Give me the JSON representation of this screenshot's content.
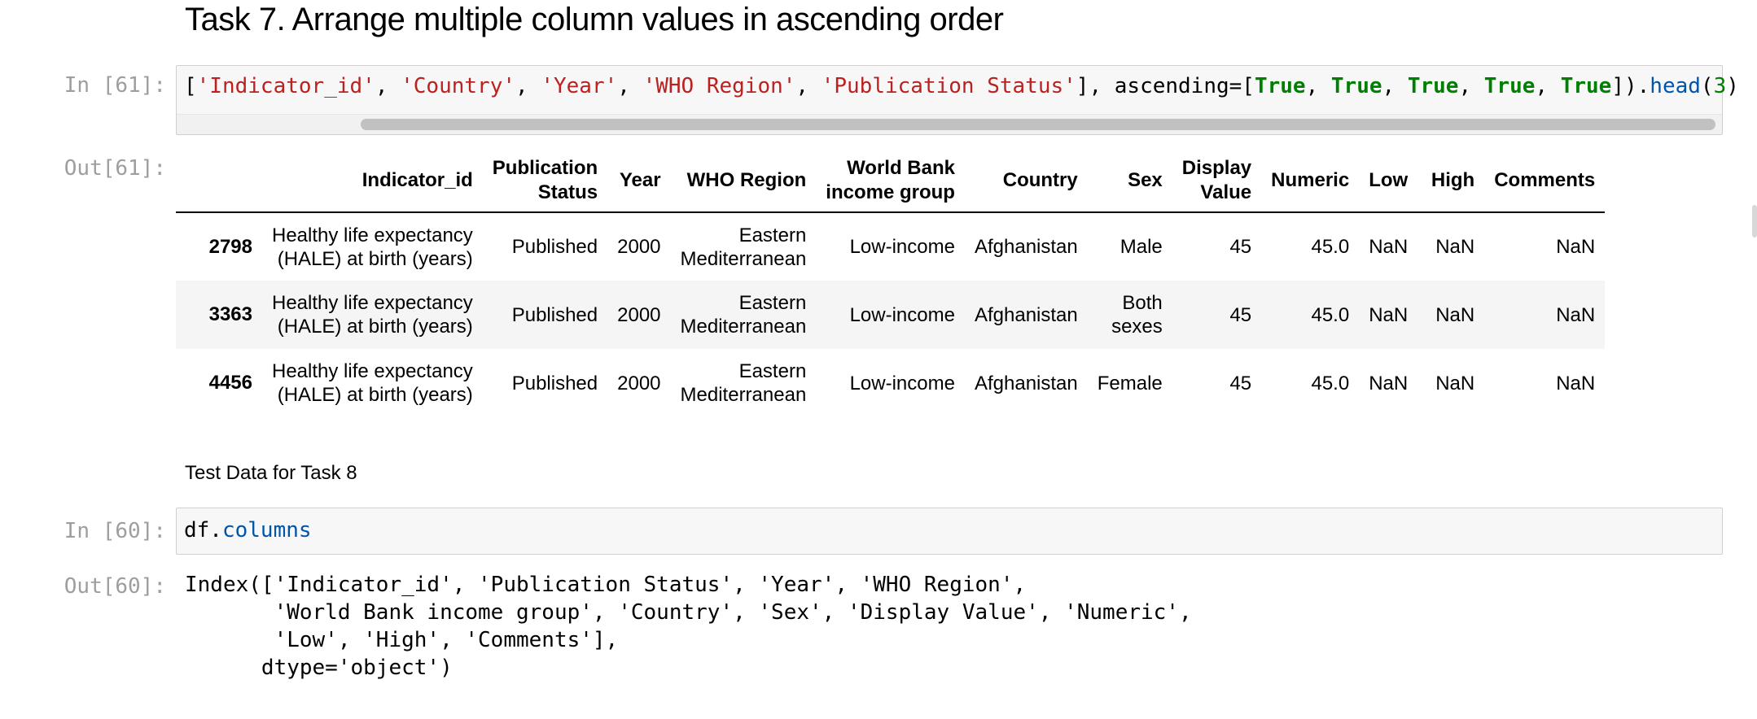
{
  "heading": "Task 7. Arrange multiple column values in ascending order",
  "cell61": {
    "in_prompt": "In [61]:",
    "out_prompt": "Out[61]:",
    "code": {
      "p1": "[",
      "s1": "'Indicator_id'",
      "c1": ", ",
      "s2": "'Country'",
      "c2": ", ",
      "s3": "'Year'",
      "c3": ", ",
      "s4": "'WHO Region'",
      "c4": ", ",
      "s5": "'Publication Status'",
      "p2": "], ascending=[",
      "k1": "True",
      "c5": ", ",
      "k2": "True",
      "c6": ", ",
      "k3": "True",
      "c7": ", ",
      "k4": "True",
      "c8": ", ",
      "k5": "True",
      "p3": "]).",
      "f1": "head",
      "p4": "(",
      "n1": "3",
      "p5": ")"
    },
    "table": {
      "columns": [
        [
          "Indicator_id"
        ],
        [
          "Publication",
          "Status"
        ],
        [
          "Year"
        ],
        [
          "WHO Region"
        ],
        [
          "World Bank",
          "income group"
        ],
        [
          "Country"
        ],
        [
          "Sex"
        ],
        [
          "Display",
          "Value"
        ],
        [
          "Numeric"
        ],
        [
          "Low"
        ],
        [
          "High"
        ],
        [
          "Comments"
        ]
      ],
      "rows": [
        {
          "index": "2798",
          "cells": [
            [
              "Healthy life expectancy",
              "(HALE) at birth (years)"
            ],
            [
              "Published"
            ],
            [
              "2000"
            ],
            [
              "Eastern",
              "Mediterranean"
            ],
            [
              "Low-income"
            ],
            [
              "Afghanistan"
            ],
            [
              "Male"
            ],
            [
              "45"
            ],
            [
              "45.0"
            ],
            [
              "NaN"
            ],
            [
              "NaN"
            ],
            [
              "NaN"
            ]
          ]
        },
        {
          "index": "3363",
          "cells": [
            [
              "Healthy life expectancy",
              "(HALE) at birth (years)"
            ],
            [
              "Published"
            ],
            [
              "2000"
            ],
            [
              "Eastern",
              "Mediterranean"
            ],
            [
              "Low-income"
            ],
            [
              "Afghanistan"
            ],
            [
              "Both",
              "sexes"
            ],
            [
              "45"
            ],
            [
              "45.0"
            ],
            [
              "NaN"
            ],
            [
              "NaN"
            ],
            [
              "NaN"
            ]
          ]
        },
        {
          "index": "4456",
          "cells": [
            [
              "Healthy life expectancy",
              "(HALE) at birth (years)"
            ],
            [
              "Published"
            ],
            [
              "2000"
            ],
            [
              "Eastern",
              "Mediterranean"
            ],
            [
              "Low-income"
            ],
            [
              "Afghanistan"
            ],
            [
              "Female"
            ],
            [
              "45"
            ],
            [
              "45.0"
            ],
            [
              "NaN"
            ],
            [
              "NaN"
            ],
            [
              "NaN"
            ]
          ]
        }
      ]
    }
  },
  "markdown_text": "Test Data for Task 8",
  "cell60": {
    "in_prompt": "In [60]:",
    "out_prompt": "Out[60]:",
    "code_obj": "df.",
    "code_attr": "columns",
    "output": "Index(['Indicator_id', 'Publication Status', 'Year', 'WHO Region',\n       'World Bank income group', 'Country', 'Sex', 'Display Value', 'Numeric',\n       'Low', 'High', 'Comments'],\n      dtype='object')"
  }
}
